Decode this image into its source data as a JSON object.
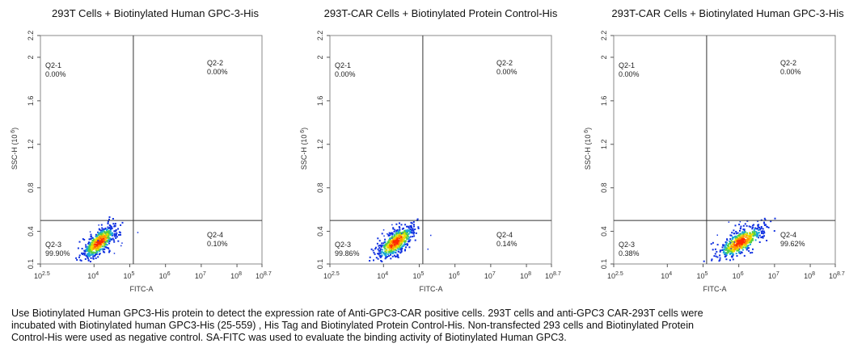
{
  "panels": [
    {
      "title": "293T Cells + Biotinylated Human GPC-3-His"
    },
    {
      "title": "293T-CAR Cells + Biotinylated Protein Control-His"
    },
    {
      "title": "293T-CAR Cells + Biotinylated Human GPC-3-His"
    }
  ],
  "caption_lines": [
    "Use Biotinylated Human GPC3-His protein to detect the expression rate of Anti-GPC3-CAR positive cells. 293T cells and anti-GPC3 CAR-293T cells were",
    "incubated with Biotinylated human GPC3-His (25-559) , His Tag and Biotinylated Protein Control-His. Non-transfected 293 cells and Biotinylated Protein",
    "Control-His were used as negative control. SA-FITC was used to evaluate the binding activity of Biotinylated Human GPC3."
  ],
  "chart_data": [
    {
      "type": "scatter",
      "title": "293T Cells + Biotinylated Human GPC-3-His",
      "xlabel": "FITC-A",
      "ylabel": "SSC-H (10^6)",
      "x_scale": "log10",
      "xlim_log10": [
        2.5,
        8.7
      ],
      "xticks_log10": [
        2.5,
        4,
        5,
        6,
        7,
        8,
        8.7
      ],
      "ylim": [
        0.1,
        2.2
      ],
      "yticks": [
        "0.1",
        "0.4",
        "0.8",
        "1.2",
        "1.6",
        "2",
        "2.2"
      ],
      "gate": {
        "x_log10": 5.1,
        "y": 0.5
      },
      "quadrants": [
        {
          "label": "Q2-1",
          "value": "0.00%"
        },
        {
          "label": "Q2-2",
          "value": "0.00%"
        },
        {
          "label": "Q2-3",
          "value": "99.90%"
        },
        {
          "label": "Q2-4",
          "value": "0.10%"
        }
      ],
      "population": {
        "center_x_log10": 4.15,
        "center_y": 0.3,
        "spread_x": 0.22,
        "spread_y": 0.07
      }
    },
    {
      "type": "scatter",
      "title": "293T-CAR Cells + Biotinylated Protein Control-His",
      "xlabel": "FITC-A",
      "ylabel": "SSC-H (10^6)",
      "x_scale": "log10",
      "xlim_log10": [
        2.5,
        8.7
      ],
      "xticks_log10": [
        2.5,
        4,
        5,
        6,
        7,
        8,
        8.7
      ],
      "ylim": [
        0.1,
        2.2
      ],
      "yticks": [
        "0.1",
        "0.4",
        "0.8",
        "1.2",
        "1.6",
        "2",
        "2.2"
      ],
      "gate": {
        "x_log10": 5.1,
        "y": 0.5
      },
      "quadrants": [
        {
          "label": "Q2-1",
          "value": "0.00%"
        },
        {
          "label": "Q2-2",
          "value": "0.00%"
        },
        {
          "label": "Q2-3",
          "value": "99.86%"
        },
        {
          "label": "Q2-4",
          "value": "0.14%"
        }
      ],
      "population": {
        "center_x_log10": 4.35,
        "center_y": 0.3,
        "spread_x": 0.25,
        "spread_y": 0.07
      }
    },
    {
      "type": "scatter",
      "title": "293T-CAR Cells + Biotinylated Human GPC-3-His",
      "xlabel": "FITC-A",
      "ylabel": "SSC-H (10^6)",
      "x_scale": "log10",
      "xlim_log10": [
        2.5,
        8.7
      ],
      "xticks_log10": [
        2.5,
        4,
        5,
        6,
        7,
        8,
        8.7
      ],
      "ylim": [
        0.1,
        2.2
      ],
      "yticks": [
        "0.1",
        "0.4",
        "0.8",
        "1.2",
        "1.6",
        "2",
        "2.2"
      ],
      "gate": {
        "x_log10": 5.1,
        "y": 0.5
      },
      "quadrants": [
        {
          "label": "Q2-1",
          "value": "0.00%"
        },
        {
          "label": "Q2-2",
          "value": "0.00%"
        },
        {
          "label": "Q2-3",
          "value": "0.38%"
        },
        {
          "label": "Q2-4",
          "value": "99.62%"
        }
      ],
      "population": {
        "center_x_log10": 6.05,
        "center_y": 0.3,
        "spread_x": 0.3,
        "spread_y": 0.07
      }
    }
  ]
}
